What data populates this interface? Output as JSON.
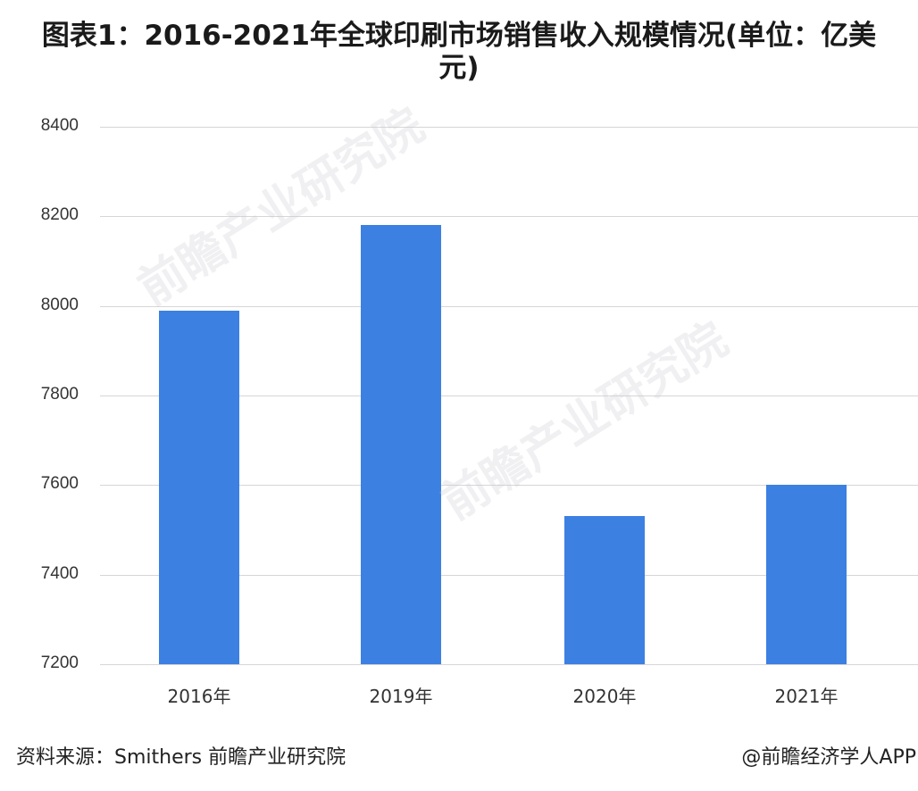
{
  "title": {
    "line1": "图表1：2016-2021年全球印刷市场销售收入规模情况(单位：亿美",
    "line2": "元)"
  },
  "footer": {
    "source": "资料来源：Smithers 前瞻产业研究院",
    "credit": "@前瞻经济学人APP"
  },
  "watermark": {
    "text": "前瞻产业研究院"
  },
  "colors": {
    "bar": "#3c80e2",
    "grid": "#d6d6d6"
  },
  "chart_data": {
    "type": "bar",
    "title": "图表1：2016-2021年全球印刷市场销售收入规模情况(单位：亿美元)",
    "categories": [
      "2016年",
      "2019年",
      "2020年",
      "2021年"
    ],
    "values": [
      7990,
      8180,
      7530,
      7600
    ],
    "xlabel": "",
    "ylabel": "",
    "ylim": [
      7200,
      8400
    ],
    "yticks": [
      "8400",
      "8200",
      "8000",
      "7800",
      "7600",
      "7400",
      "7200"
    ],
    "grid": true,
    "legend": "none"
  }
}
